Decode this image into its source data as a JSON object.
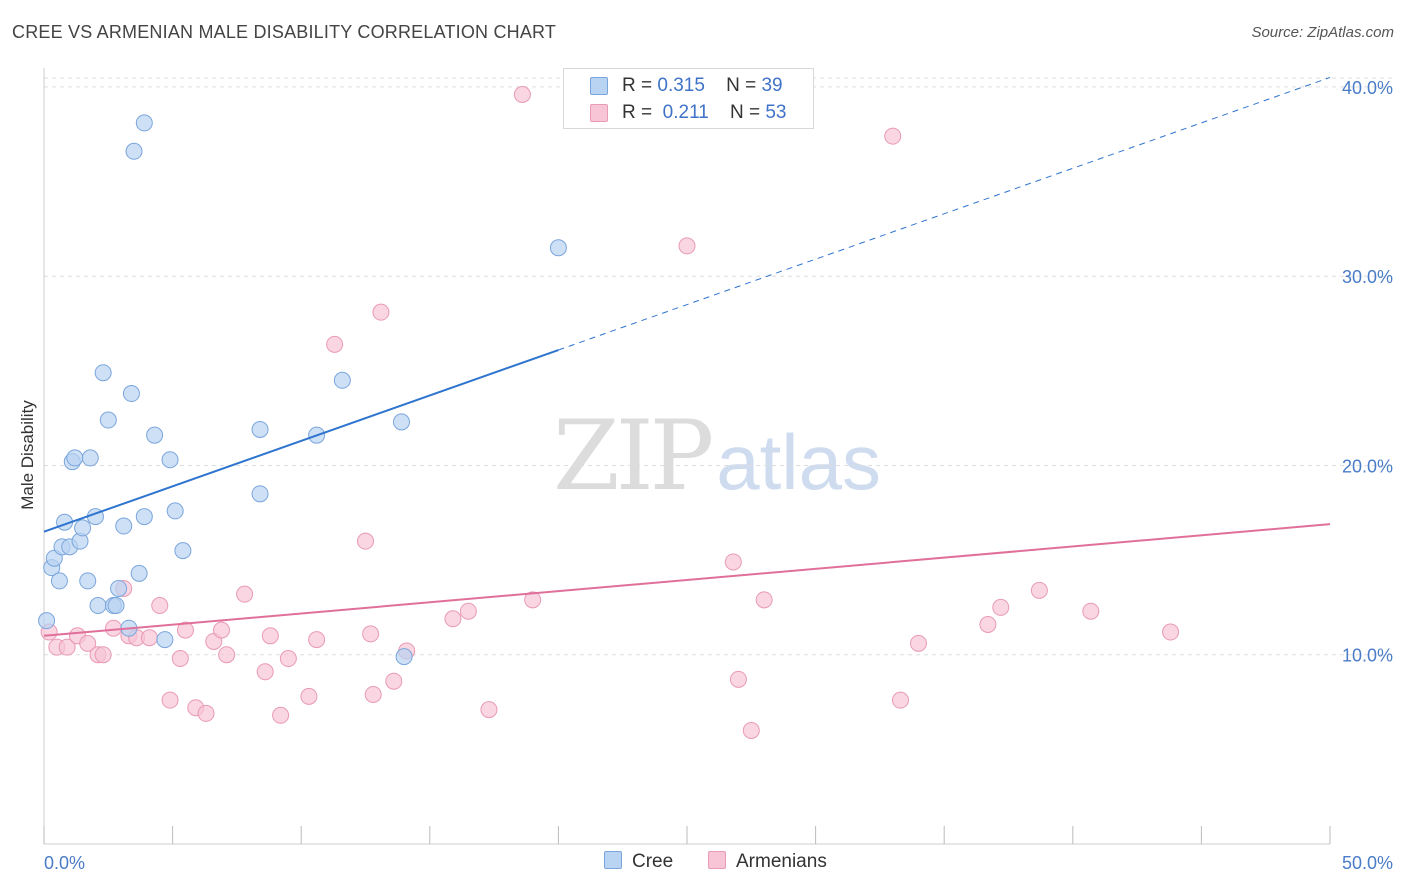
{
  "title": "CREE VS ARMENIAN MALE DISABILITY CORRELATION CHART",
  "source": "Source: ZipAtlas.com",
  "watermark": {
    "zip": "ZIP",
    "atlas": "atlas"
  },
  "legend": {
    "rows": [
      {
        "r_label": "R =",
        "r_value": "0.315",
        "n_label": "N =",
        "n_value": "39"
      },
      {
        "r_label": "R =",
        "r_value": "0.211",
        "n_label": "N =",
        "n_value": "53"
      }
    ]
  },
  "bottom_legend": [
    "Cree",
    "Armenians"
  ],
  "colors": {
    "cree_fill": "#b9d3f2",
    "cree_stroke": "#7aa5dc",
    "cree_line": "#2f74cf",
    "arm_fill": "#f7c5d5",
    "arm_stroke": "#e99ab5",
    "arm_line": "#e0709a",
    "grid": "#dddddd",
    "axis_text": "#4a7cc7"
  },
  "chart_data": {
    "type": "scatter",
    "title": "CREE VS ARMENIAN MALE DISABILITY CORRELATION CHART",
    "xlabel": "",
    "ylabel": "Male Disability",
    "xlim": [
      0,
      50
    ],
    "ylim": [
      0,
      41
    ],
    "x_tick_labels": [
      "0.0%",
      "50.0%"
    ],
    "y_ticks": [
      10,
      20,
      30,
      40
    ],
    "y_tick_labels": [
      "10.0%",
      "20.0%",
      "30.0%",
      "40.0%"
    ],
    "grid": true,
    "legend_position": "top-center",
    "series": [
      {
        "name": "Cree",
        "r": 0.315,
        "n": 39,
        "trend": {
          "x0": 0,
          "y0": 16.5,
          "x1": 50,
          "y1": 40.5,
          "solid_until_x": 20
        },
        "points": [
          [
            0.1,
            11.8
          ],
          [
            0.3,
            14.6
          ],
          [
            0.4,
            15.1
          ],
          [
            0.6,
            13.9
          ],
          [
            0.7,
            15.7
          ],
          [
            0.8,
            17.0
          ],
          [
            1.0,
            15.7
          ],
          [
            1.1,
            20.2
          ],
          [
            1.2,
            20.4
          ],
          [
            1.4,
            16.0
          ],
          [
            1.5,
            16.7
          ],
          [
            1.7,
            13.9
          ],
          [
            1.8,
            20.4
          ],
          [
            2.0,
            17.3
          ],
          [
            2.1,
            12.6
          ],
          [
            2.3,
            24.9
          ],
          [
            2.5,
            22.4
          ],
          [
            2.7,
            12.6
          ],
          [
            2.8,
            12.6
          ],
          [
            2.9,
            13.5
          ],
          [
            3.1,
            16.8
          ],
          [
            3.3,
            11.4
          ],
          [
            3.4,
            23.8
          ],
          [
            3.7,
            14.3
          ],
          [
            3.9,
            17.3
          ],
          [
            3.5,
            36.6
          ],
          [
            3.9,
            38.1
          ],
          [
            4.3,
            21.6
          ],
          [
            4.7,
            10.8
          ],
          [
            4.9,
            20.3
          ],
          [
            5.1,
            17.6
          ],
          [
            5.4,
            15.5
          ],
          [
            8.4,
            21.9
          ],
          [
            8.4,
            18.5
          ],
          [
            10.6,
            21.6
          ],
          [
            11.6,
            24.5
          ],
          [
            13.9,
            22.3
          ],
          [
            14.0,
            9.9
          ],
          [
            20.0,
            31.5
          ]
        ]
      },
      {
        "name": "Armenians",
        "r": 0.211,
        "n": 53,
        "trend": {
          "x0": 0,
          "y0": 11.0,
          "x1": 50,
          "y1": 16.9
        },
        "points": [
          [
            0.2,
            11.2
          ],
          [
            0.5,
            10.4
          ],
          [
            0.9,
            10.4
          ],
          [
            1.3,
            11.0
          ],
          [
            1.7,
            10.6
          ],
          [
            2.1,
            10.0
          ],
          [
            2.3,
            10.0
          ],
          [
            2.7,
            11.4
          ],
          [
            3.1,
            13.5
          ],
          [
            3.3,
            11.0
          ],
          [
            3.6,
            10.9
          ],
          [
            4.1,
            10.9
          ],
          [
            4.5,
            12.6
          ],
          [
            4.9,
            7.6
          ],
          [
            5.3,
            9.8
          ],
          [
            5.5,
            11.3
          ],
          [
            5.9,
            7.2
          ],
          [
            6.3,
            6.9
          ],
          [
            6.6,
            10.7
          ],
          [
            6.9,
            11.3
          ],
          [
            7.1,
            10.0
          ],
          [
            7.8,
            13.2
          ],
          [
            8.6,
            9.1
          ],
          [
            8.8,
            11.0
          ],
          [
            9.2,
            6.8
          ],
          [
            9.5,
            9.8
          ],
          [
            10.3,
            7.8
          ],
          [
            10.6,
            10.8
          ],
          [
            11.3,
            26.4
          ],
          [
            12.5,
            16.0
          ],
          [
            12.7,
            11.1
          ],
          [
            12.8,
            7.9
          ],
          [
            13.1,
            28.1
          ],
          [
            13.6,
            8.6
          ],
          [
            14.1,
            10.2
          ],
          [
            15.9,
            11.9
          ],
          [
            16.5,
            12.3
          ],
          [
            17.3,
            7.1
          ],
          [
            18.6,
            39.6
          ],
          [
            19.0,
            12.9
          ],
          [
            25.0,
            31.6
          ],
          [
            26.8,
            14.9
          ],
          [
            27.0,
            8.7
          ],
          [
            27.5,
            6.0
          ],
          [
            28.0,
            12.9
          ],
          [
            33.0,
            37.4
          ],
          [
            33.3,
            7.6
          ],
          [
            34.0,
            10.6
          ],
          [
            36.7,
            11.6
          ],
          [
            37.2,
            12.5
          ],
          [
            38.7,
            13.4
          ],
          [
            40.7,
            12.3
          ],
          [
            43.8,
            11.2
          ]
        ]
      }
    ]
  }
}
